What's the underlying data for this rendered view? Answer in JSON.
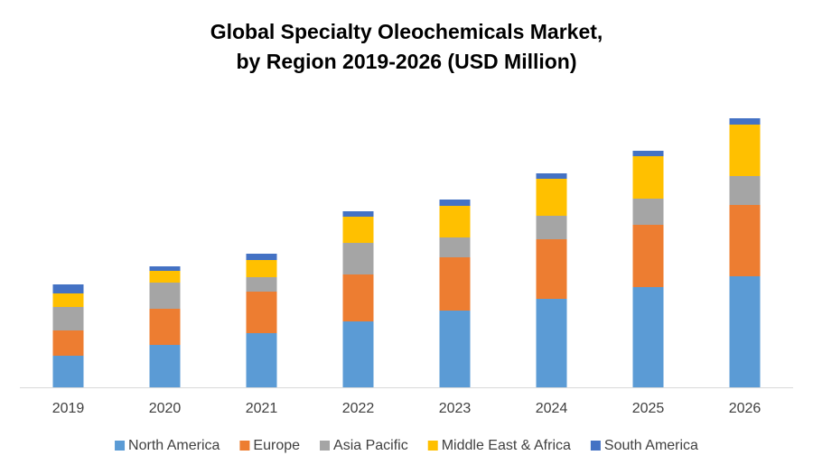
{
  "chart_data": {
    "type": "stacked_bar",
    "title": [
      "Global Specialty Oleochemicals Market,",
      "by Region 2019-2026 (USD Million)"
    ],
    "categories": [
      "2019",
      "2020",
      "2021",
      "2022",
      "2023",
      "2024",
      "2025",
      "2026"
    ],
    "ylim": [
      0,
      310
    ],
    "series": [
      {
        "name": "North America",
        "color": "#5b9bd5",
        "values": [
          35,
          47,
          60,
          73,
          85,
          98,
          111,
          123
        ]
      },
      {
        "name": "Europe",
        "color": "#ed7d31",
        "values": [
          28,
          40,
          46,
          52,
          59,
          66,
          69,
          79
        ]
      },
      {
        "name": "Asia Pacific",
        "color": "#a5a5a5",
        "values": [
          26,
          29,
          16,
          35,
          22,
          26,
          29,
          32
        ]
      },
      {
        "name": "Middle East & Africa",
        "color": "#ffc000",
        "values": [
          15,
          13,
          19,
          29,
          35,
          41,
          47,
          57
        ]
      },
      {
        "name": "South America",
        "color": "#4472c4",
        "values": [
          10,
          5,
          7,
          6,
          7,
          6,
          6,
          7
        ]
      }
    ]
  }
}
